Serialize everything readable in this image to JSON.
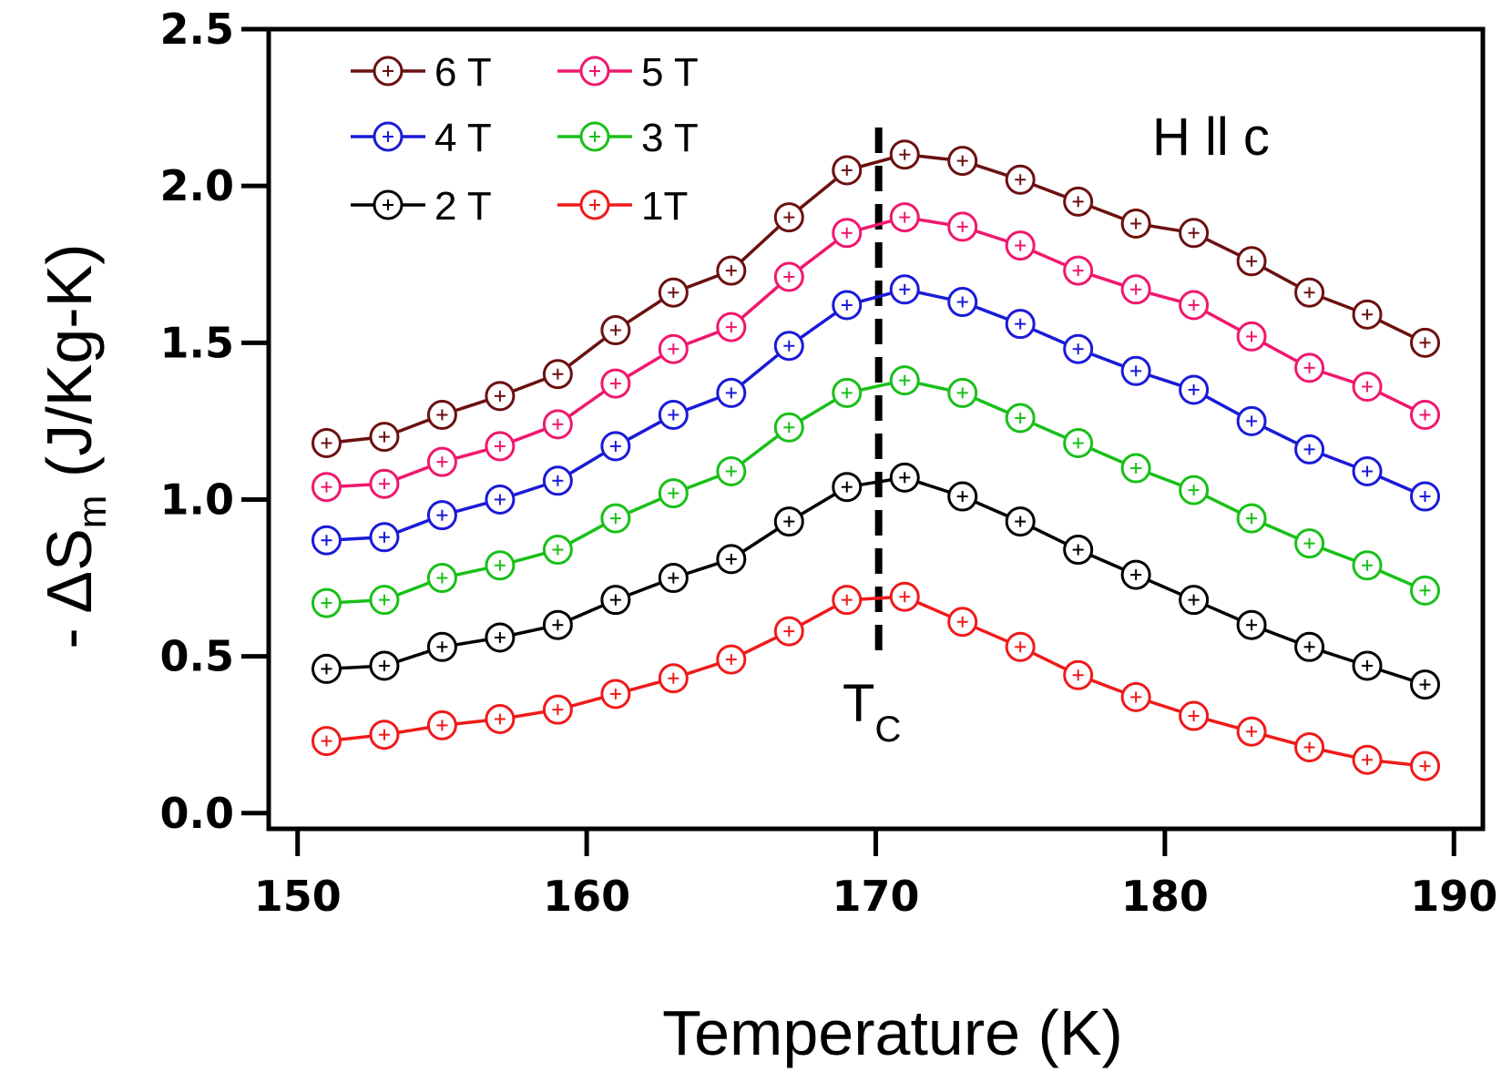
{
  "chart_data": {
    "type": "line",
    "title": "",
    "xlabel": "Temperature (K)",
    "ylabel": {
      "prefix": "- ΔS",
      "subscript": "m",
      "units": " (J/Kg-K)"
    },
    "xlim": [
      149,
      191
    ],
    "ylim": [
      -0.05,
      2.5
    ],
    "xticks": [
      150,
      160,
      170,
      180,
      190
    ],
    "yticks": [
      0.0,
      0.5,
      1.0,
      1.5,
      2.0,
      2.5
    ],
    "ytick_labels": [
      "0.0",
      "0.5",
      "1.0",
      "1.5",
      "2.0",
      "2.5"
    ],
    "x": [
      151,
      153,
      155,
      157,
      159,
      161,
      163,
      165,
      167,
      169,
      171,
      173,
      175,
      177,
      179,
      181,
      183,
      185,
      187,
      189
    ],
    "series": [
      {
        "name": "6 T",
        "color": "#6b1010",
        "values": [
          1.18,
          1.2,
          1.27,
          1.33,
          1.4,
          1.54,
          1.66,
          1.73,
          1.9,
          2.05,
          2.1,
          2.08,
          2.02,
          1.95,
          1.88,
          1.85,
          1.76,
          1.66,
          1.59,
          1.5
        ]
      },
      {
        "name": "5 T",
        "color": "#f0186e",
        "values": [
          1.04,
          1.05,
          1.12,
          1.17,
          1.24,
          1.37,
          1.48,
          1.55,
          1.71,
          1.85,
          1.9,
          1.87,
          1.81,
          1.73,
          1.67,
          1.62,
          1.52,
          1.42,
          1.36,
          1.27
        ]
      },
      {
        "name": "4 T",
        "color": "#1a1ad8",
        "values": [
          0.87,
          0.88,
          0.95,
          1.0,
          1.06,
          1.17,
          1.27,
          1.34,
          1.49,
          1.62,
          1.67,
          1.63,
          1.56,
          1.48,
          1.41,
          1.35,
          1.25,
          1.16,
          1.09,
          1.01
        ]
      },
      {
        "name": "3 T",
        "color": "#18c018",
        "values": [
          0.67,
          0.68,
          0.75,
          0.79,
          0.84,
          0.94,
          1.02,
          1.09,
          1.23,
          1.34,
          1.38,
          1.34,
          1.26,
          1.18,
          1.1,
          1.03,
          0.94,
          0.86,
          0.79,
          0.71
        ]
      },
      {
        "name": "2 T",
        "color": "#000000",
        "values": [
          0.46,
          0.47,
          0.53,
          0.56,
          0.6,
          0.68,
          0.75,
          0.81,
          0.93,
          1.04,
          1.07,
          1.01,
          0.93,
          0.84,
          0.76,
          0.68,
          0.6,
          0.53,
          0.47,
          0.41
        ]
      },
      {
        "name": "1T",
        "color": "#f01a1a",
        "values": [
          0.23,
          0.25,
          0.28,
          0.3,
          0.33,
          0.38,
          0.43,
          0.49,
          0.58,
          0.68,
          0.69,
          0.61,
          0.53,
          0.44,
          0.37,
          0.31,
          0.26,
          0.21,
          0.17,
          0.15
        ]
      }
    ],
    "vline": {
      "x": 170.1,
      "style": "dashed",
      "label": "T",
      "label_sub": "C"
    },
    "annotation": "H ll c",
    "legend": {
      "placement": "top-left",
      "columns": 2,
      "order": [
        "6 T",
        "5 T",
        "4 T",
        "3 T",
        "2 T",
        "1T"
      ]
    },
    "grid": false
  }
}
